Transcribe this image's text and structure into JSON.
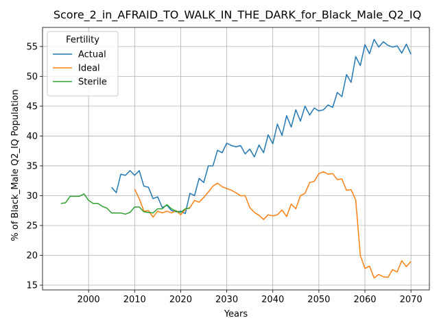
{
  "chart_data": {
    "type": "line",
    "title": "Score_2_in_AFRAID_TO_WALK_IN_THE_DARK_for_Black_Male_Q2_IQ",
    "xlabel": "Years",
    "ylabel": "% of Black_Male Q2_IQ Population",
    "xlim": [
      1990,
      2074
    ],
    "ylim": [
      14.2,
      58.2
    ],
    "xticks": [
      2000,
      2010,
      2020,
      2030,
      2040,
      2050,
      2060,
      2070
    ],
    "yticks": [
      15,
      20,
      25,
      30,
      35,
      40,
      45,
      50,
      55
    ],
    "grid": true,
    "legend": {
      "title": "Fertility",
      "placement": "top-left"
    },
    "series": [
      {
        "name": "Actual",
        "color": "#1f77b4",
        "x": [
          2005,
          2006,
          2007,
          2008,
          2009,
          2010,
          2011,
          2012,
          2013,
          2014,
          2015,
          2016,
          2017,
          2018,
          2019,
          2020,
          2021,
          2022,
          2023,
          2024,
          2025,
          2026,
          2027,
          2028,
          2029,
          2030,
          2031,
          2032,
          2033,
          2034,
          2035,
          2036,
          2037,
          2038,
          2039,
          2040,
          2041,
          2042,
          2043,
          2044,
          2045,
          2046,
          2047,
          2048,
          2049,
          2050,
          2051,
          2052,
          2053,
          2054,
          2055,
          2056,
          2057,
          2058,
          2059,
          2060,
          2061,
          2062,
          2063,
          2064,
          2065,
          2066,
          2067,
          2068,
          2069,
          2070
        ],
        "y": [
          31.4,
          30.5,
          33.6,
          33.4,
          34.2,
          33.4,
          34.2,
          31.6,
          31.4,
          29.5,
          29.8,
          28.0,
          28.4,
          27.5,
          27.3,
          27.4,
          27.0,
          30.4,
          30.0,
          32.9,
          32.2,
          35.0,
          35.0,
          37.6,
          37.2,
          38.8,
          38.4,
          38.2,
          38.4,
          37.0,
          37.8,
          36.5,
          38.5,
          37.2,
          40.2,
          38.7,
          42.0,
          40.1,
          43.4,
          41.5,
          44.4,
          42.5,
          45.0,
          43.5,
          44.7,
          44.2,
          44.4,
          45.2,
          44.8,
          47.3,
          46.6,
          50.3,
          49.0,
          53.3,
          51.8,
          55.3,
          53.8,
          56.2,
          54.9,
          55.8,
          55.2,
          54.9,
          55.1,
          53.9,
          55.4,
          53.7
        ]
      },
      {
        "name": "Ideal",
        "color": "#ff7f0e",
        "x": [
          2010,
          2011,
          2012,
          2013,
          2014,
          2015,
          2016,
          2017,
          2018,
          2019,
          2020,
          2021,
          2022,
          2023,
          2024,
          2025,
          2026,
          2027,
          2028,
          2029,
          2030,
          2031,
          2032,
          2033,
          2034,
          2035,
          2036,
          2037,
          2038,
          2039,
          2040,
          2041,
          2042,
          2043,
          2044,
          2045,
          2046,
          2047,
          2048,
          2049,
          2050,
          2051,
          2052,
          2053,
          2054,
          2055,
          2056,
          2057,
          2058,
          2059,
          2060,
          2061,
          2062,
          2063,
          2064,
          2065,
          2066,
          2067,
          2068,
          2069,
          2070
        ],
        "y": [
          31.1,
          29.5,
          27.4,
          27.5,
          26.4,
          27.4,
          27.1,
          27.4,
          27.1,
          27.5,
          26.8,
          27.7,
          28.0,
          29.2,
          28.9,
          29.7,
          30.6,
          31.6,
          32.1,
          31.5,
          31.2,
          30.9,
          30.5,
          30.0,
          30.0,
          28.0,
          27.2,
          26.7,
          26.0,
          26.8,
          26.6,
          26.8,
          27.6,
          26.5,
          28.6,
          27.8,
          30.0,
          30.4,
          32.2,
          32.4,
          33.7,
          34.0,
          33.6,
          33.7,
          32.7,
          32.8,
          30.9,
          31.0,
          29.3,
          20.0,
          17.8,
          18.2,
          16.2,
          16.8,
          16.4,
          16.3,
          17.6,
          17.2,
          19.1,
          18.1,
          19.0
        ]
      },
      {
        "name": "Sterile",
        "color": "#2ca02c",
        "x": [
          1994,
          1995,
          1996,
          1997,
          1998,
          1999,
          2000,
          2001,
          2002,
          2003,
          2004,
          2005,
          2006,
          2007,
          2008,
          2009,
          2010,
          2011,
          2012,
          2013,
          2014,
          2015,
          2016,
          2017,
          2018,
          2019,
          2020,
          2021,
          2022
        ],
        "y": [
          28.7,
          28.8,
          29.9,
          29.9,
          29.9,
          30.3,
          29.2,
          28.7,
          28.7,
          28.2,
          27.9,
          27.1,
          27.1,
          27.1,
          26.9,
          27.2,
          28.1,
          28.1,
          27.3,
          27.2,
          27.1,
          27.8,
          27.8,
          28.5,
          27.8,
          27.4,
          27.2,
          27.8,
          27.9
        ]
      }
    ]
  }
}
